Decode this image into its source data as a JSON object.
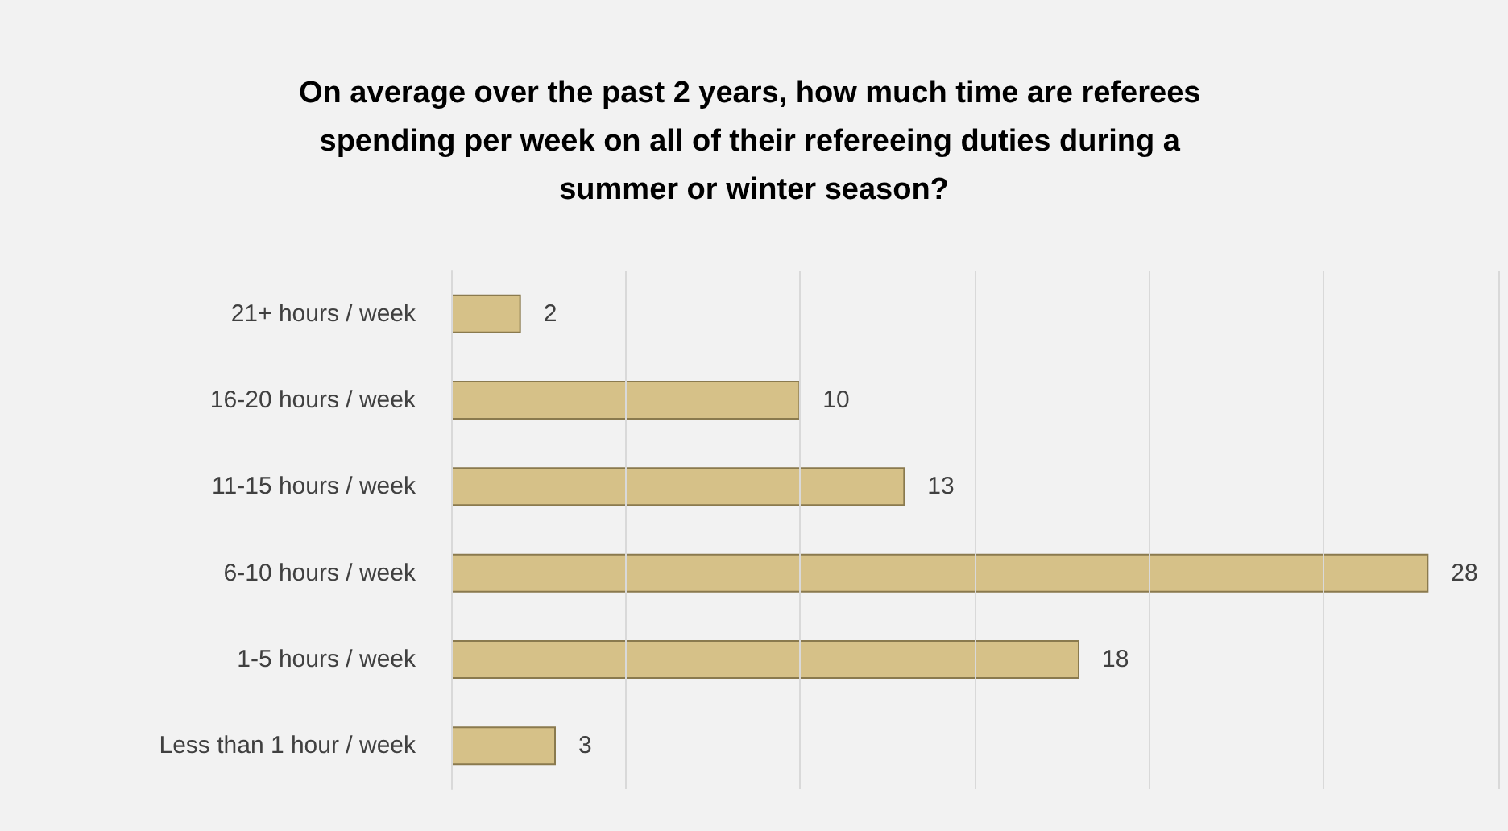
{
  "chart_data": {
    "type": "bar",
    "orientation": "horizontal",
    "title": "On average over the past 2 years, how much time are referees spending per week on all of their refereeing duties during a summer or winter season?",
    "categories": [
      "21+ hours / week",
      "16-20 hours / week",
      "11-15 hours / week",
      "6-10 hours / week",
      "1-5 hours / week",
      "Less than 1 hour / week"
    ],
    "values": [
      2,
      10,
      13,
      28,
      18,
      3
    ],
    "color": "#d6c188",
    "xlim": [
      0,
      30
    ],
    "xticks": [
      {
        "value": 0,
        "label": null
      },
      {
        "value": 5,
        "label": null
      },
      {
        "value": 10,
        "label": null
      },
      {
        "value": 15,
        "label": null
      },
      {
        "value": 20,
        "label": null
      },
      {
        "value": 25,
        "label": null
      },
      {
        "value": 30,
        "label": null
      }
    ],
    "tick_labels": "y",
    "grid": "x",
    "data_labels": true
  }
}
